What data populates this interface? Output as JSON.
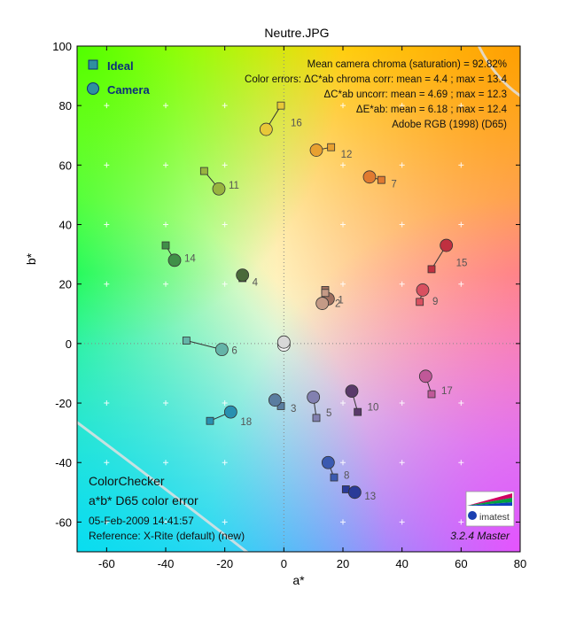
{
  "chart_data": {
    "type": "scatter",
    "title": "Neutre.JPG",
    "xlabel": "a*",
    "ylabel": "b*",
    "xlim": [
      -70,
      80
    ],
    "ylim": [
      -70,
      100
    ],
    "xticks": [
      "-60",
      "-40",
      "-20",
      "0",
      "20",
      "40",
      "60",
      "80"
    ],
    "yticks": [
      "-60",
      "-40",
      "-20",
      "0",
      "20",
      "40",
      "60",
      "80",
      "100"
    ],
    "xtick_values": [
      -60,
      -40,
      -20,
      0,
      20,
      40,
      60,
      80
    ],
    "ytick_values": [
      -60,
      -40,
      -20,
      0,
      20,
      40,
      60,
      80,
      100
    ],
    "legend": {
      "ideal": "Ideal",
      "camera": "Camera"
    },
    "stats": [
      "Mean camera chroma (saturation) = 92.82%",
      "Color errors: ΔC*ab chroma corr:  mean = 4.4 ;  max = 13.4",
      "ΔC*ab uncorr:  mean = 4.69 ;  max = 12.3",
      "ΔE*ab:  mean = 6.18 ;  max = 12.4",
      "Adobe RGB (1998) (D65)"
    ],
    "footer": {
      "line1": "ColorChecker",
      "line2": "a*b* D65 color error",
      "date": "05-Feb-2009 14:41:57",
      "reference": "Reference: X-Rite (default) (new)",
      "version": "3.2.4  Master",
      "logo": "imatest"
    },
    "patches": [
      {
        "label": "1",
        "ideal": [
          14,
          18
        ],
        "camera": [
          15,
          15
        ],
        "color": "#a07060"
      },
      {
        "label": "2",
        "ideal": [
          14,
          17
        ],
        "camera": [
          13,
          13.5
        ],
        "color": "#c49a86"
      },
      {
        "label": "3",
        "ideal": [
          -1,
          -21
        ],
        "camera": [
          -3,
          -19
        ],
        "color": "#5a7da0"
      },
      {
        "label": "4",
        "ideal": [
          -14,
          22
        ],
        "camera": [
          -14,
          23
        ],
        "color": "#4a6a3a"
      },
      {
        "label": "5",
        "ideal": [
          11,
          -25
        ],
        "camera": [
          10,
          -18
        ],
        "color": "#8280b0"
      },
      {
        "label": "6",
        "ideal": [
          -33,
          1
        ],
        "camera": [
          -21,
          -2
        ],
        "color": "#64b4a8"
      },
      {
        "label": "7",
        "ideal": [
          33,
          55
        ],
        "camera": [
          29,
          56
        ],
        "color": "#e07a30"
      },
      {
        "label": "8",
        "ideal": [
          17,
          -45
        ],
        "camera": [
          15,
          -40
        ],
        "color": "#3a5ab0"
      },
      {
        "label": "9",
        "ideal": [
          46,
          14
        ],
        "camera": [
          47,
          18
        ],
        "color": "#d85060"
      },
      {
        "label": "10",
        "ideal": [
          25,
          -23
        ],
        "camera": [
          23,
          -16
        ],
        "color": "#5a3a6a"
      },
      {
        "label": "11",
        "ideal": [
          -27,
          58
        ],
        "camera": [
          -22,
          52
        ],
        "color": "#98b440"
      },
      {
        "label": "12",
        "ideal": [
          16,
          66
        ],
        "camera": [
          11,
          65
        ],
        "color": "#e8a030"
      },
      {
        "label": "13",
        "ideal": [
          21,
          -49
        ],
        "camera": [
          24,
          -50
        ],
        "color": "#2a3a98"
      },
      {
        "label": "14",
        "ideal": [
          -40,
          33
        ],
        "camera": [
          -37,
          28
        ],
        "color": "#409048"
      },
      {
        "label": "15",
        "ideal": [
          50,
          25
        ],
        "camera": [
          55,
          33
        ],
        "color": "#c03040"
      },
      {
        "label": "16",
        "ideal": [
          -1,
          80
        ],
        "camera": [
          -6,
          72
        ],
        "color": "#e8c838"
      },
      {
        "label": "17",
        "ideal": [
          50,
          -17
        ],
        "camera": [
          48,
          -11
        ],
        "color": "#c05898"
      },
      {
        "label": "18",
        "ideal": [
          -25,
          -26
        ],
        "camera": [
          -18,
          -23
        ],
        "color": "#2890b0"
      },
      {
        "label": "",
        "ideal": [
          0,
          0
        ],
        "camera": [
          0,
          -0.5
        ],
        "color": "#f4f4f4"
      },
      {
        "label": "",
        "ideal": [
          0,
          0
        ],
        "camera": [
          0,
          0.5
        ],
        "color": "#d8d8d8"
      }
    ],
    "grid": true,
    "legend_position": "top-left"
  }
}
